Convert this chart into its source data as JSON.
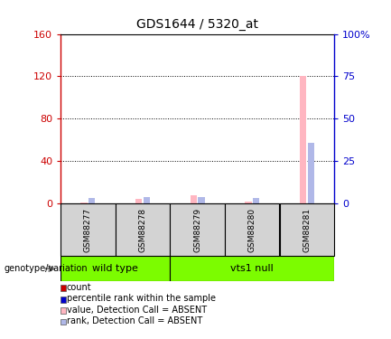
{
  "title": "GDS1644 / 5320_at",
  "samples": [
    "GSM88277",
    "GSM88278",
    "GSM88279",
    "GSM88280",
    "GSM88281"
  ],
  "absent_value": [
    1,
    4,
    8,
    2,
    120
  ],
  "absent_rank": [
    3,
    4,
    4,
    3,
    36
  ],
  "ylim_left": [
    0,
    160
  ],
  "ylim_right": [
    0,
    100
  ],
  "yticks_left": [
    0,
    40,
    80,
    120,
    160
  ],
  "ytick_labels_left": [
    "0",
    "40",
    "80",
    "120",
    "160"
  ],
  "yticks_right": [
    0,
    25,
    50,
    75,
    100
  ],
  "ytick_labels_right": [
    "0",
    "25",
    "50",
    "75",
    "100%"
  ],
  "left_axis_color": "#cc0000",
  "right_axis_color": "#0000cc",
  "absent_val_color": "#ffb6c1",
  "absent_rank_color": "#b0b8e8",
  "count_color": "#cc0000",
  "rank_color": "#0000cc",
  "plot_bg": "white",
  "bar_width": 0.12,
  "genotype_label": "genotype/variation",
  "wt_group": {
    "name": "wild type",
    "indices": [
      0,
      1
    ],
    "color": "#7CFC00"
  },
  "vts_group": {
    "name": "vts1 null",
    "indices": [
      2,
      3,
      4
    ],
    "color": "#7CFC00"
  },
  "legend_items": [
    {
      "label": "count",
      "color": "#cc0000"
    },
    {
      "label": "percentile rank within the sample",
      "color": "#0000cc"
    },
    {
      "label": "value, Detection Call = ABSENT",
      "color": "#ffb6c1"
    },
    {
      "label": "rank, Detection Call = ABSENT",
      "color": "#b0b8e8"
    }
  ]
}
